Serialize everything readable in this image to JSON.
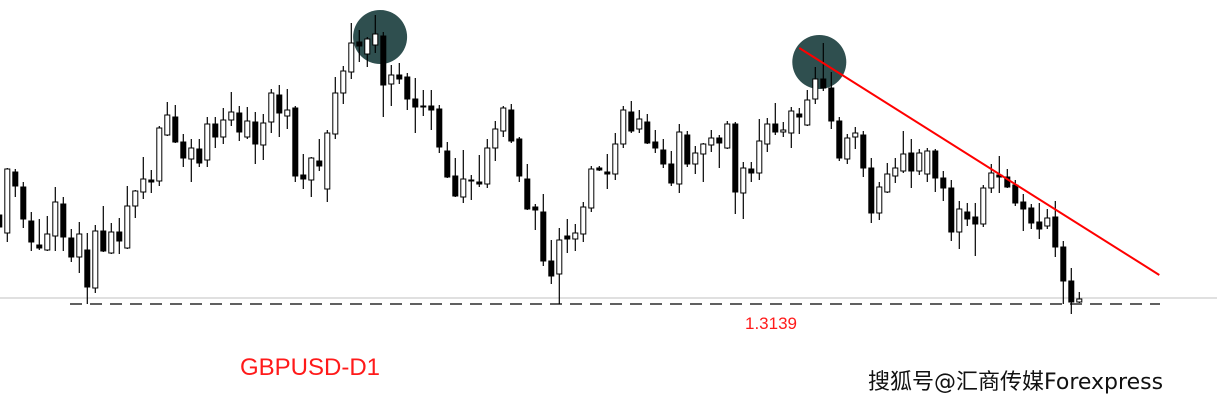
{
  "chart_data": {
    "type": "candlestick",
    "title": "GBPUSD-D1",
    "symbol": "GBPUSD",
    "timeframe": "D1",
    "xlabel": "",
    "ylabel": "",
    "grid": false,
    "ylim": [
      1.3119,
      1.3717
    ],
    "support_level": {
      "value": 1.3139,
      "label": "1.3139",
      "style": "dashed",
      "color": "#000000"
    },
    "current_price_line": {
      "value": 1.3151,
      "color": "#c0c0c0"
    },
    "trendline": {
      "from": {
        "index": 100,
        "price": 1.3651
      },
      "to": {
        "index": 145,
        "price": 1.3197
      },
      "color": "#ff0000"
    },
    "highlight_circles": [
      {
        "index": 47.6,
        "price": 1.3673,
        "color": "#2f4f4f"
      },
      {
        "index": 102.5,
        "price": 1.3623,
        "color": "#2f4f4f"
      }
    ],
    "bull_color": "#ffffff",
    "bear_color": "#000000",
    "candles_ohlc": [
      [
        1.3317,
        1.3321,
        1.3291,
        1.3293
      ],
      [
        1.3281,
        1.3411,
        1.3263,
        1.3409
      ],
      [
        1.3403,
        1.3409,
        1.3353,
        1.3375
      ],
      [
        1.3373,
        1.3383,
        1.3291,
        1.3309
      ],
      [
        1.3305,
        1.3323,
        1.3245,
        1.3263
      ],
      [
        1.3257,
        1.3309,
        1.3247,
        1.3251
      ],
      [
        1.3247,
        1.3315,
        1.3245,
        1.3279
      ],
      [
        1.3275,
        1.3373,
        1.3245,
        1.3343
      ],
      [
        1.3339,
        1.3353,
        1.3245,
        1.3273
      ],
      [
        1.3271,
        1.3289,
        1.3223,
        1.3233
      ],
      [
        1.3233,
        1.3303,
        1.3201,
        1.3279
      ],
      [
        1.3247,
        1.3281,
        1.3139,
        1.3173
      ],
      [
        1.3171,
        1.3297,
        1.3161,
        1.3285
      ],
      [
        1.3285,
        1.3335,
        1.3243,
        1.3245
      ],
      [
        1.3241,
        1.3301,
        1.3239,
        1.3283
      ],
      [
        1.3283,
        1.3311,
        1.3239,
        1.3265
      ],
      [
        1.3251,
        1.3375,
        1.3249,
        1.3335
      ],
      [
        1.3335,
        1.3367,
        1.3311,
        1.3365
      ],
      [
        1.3363,
        1.3433,
        1.3349,
        1.3389
      ],
      [
        1.3387,
        1.3407,
        1.3361,
        1.3383
      ],
      [
        1.3385,
        1.3495,
        1.3375,
        1.3491
      ],
      [
        1.3477,
        1.3543,
        1.3475,
        1.3517
      ],
      [
        1.3513,
        1.3537,
        1.3461,
        1.3463
      ],
      [
        1.3463,
        1.3479,
        1.3413,
        1.3431
      ],
      [
        1.3429,
        1.3469,
        1.3383,
        1.3451
      ],
      [
        1.3449,
        1.3469,
        1.3413,
        1.3421
      ],
      [
        1.3427,
        1.3513,
        1.3413,
        1.3499
      ],
      [
        1.3499,
        1.3513,
        1.3451,
        1.3473
      ],
      [
        1.3473,
        1.3531,
        1.3459,
        1.3507
      ],
      [
        1.3507,
        1.3563,
        1.3495,
        1.3523
      ],
      [
        1.3521,
        1.3535,
        1.3465,
        1.3483
      ],
      [
        1.3473,
        1.3533,
        1.3469,
        1.3505
      ],
      [
        1.3503,
        1.3523,
        1.3419,
        1.3459
      ],
      [
        1.3457,
        1.3519,
        1.3427,
        1.3501
      ],
      [
        1.3503,
        1.3569,
        1.3481,
        1.3561
      ],
      [
        1.3557,
        1.3577,
        1.3473,
        1.3521
      ],
      [
        1.3515,
        1.3569,
        1.3489,
        1.3527
      ],
      [
        1.3531,
        1.3535,
        1.3383,
        1.3395
      ],
      [
        1.3397,
        1.3439,
        1.3369,
        1.3389
      ],
      [
        1.3387,
        1.3433,
        1.3353,
        1.3431
      ],
      [
        1.3425,
        1.3469,
        1.3405,
        1.3415
      ],
      [
        1.3369,
        1.3487,
        1.3343,
        1.3481
      ],
      [
        1.3479,
        1.3593,
        1.3469,
        1.3561
      ],
      [
        1.3561,
        1.3615,
        1.3539,
        1.3605
      ],
      [
        1.3603,
        1.3701,
        1.3589,
        1.3661
      ],
      [
        1.3663,
        1.3687,
        1.3623,
        1.3655
      ],
      [
        1.3639,
        1.3673,
        1.3613,
        1.3669
      ],
      [
        1.3657,
        1.3717,
        1.3641,
        1.3679
      ],
      [
        1.3675,
        1.3683,
        1.3513,
        1.3577
      ],
      [
        1.3579,
        1.3617,
        1.3535,
        1.3597
      ],
      [
        1.3597,
        1.3621,
        1.3579,
        1.3589
      ],
      [
        1.3593,
        1.3601,
        1.3527,
        1.3549
      ],
      [
        1.3549,
        1.3591,
        1.3481,
        1.3533
      ],
      [
        1.3535,
        1.3567,
        1.3515,
        1.3533
      ],
      [
        1.3535,
        1.3567,
        1.3487,
        1.3527
      ],
      [
        1.3529,
        1.3537,
        1.3441,
        1.3453
      ],
      [
        1.3445,
        1.3463,
        1.3391,
        1.3393
      ],
      [
        1.3395,
        1.3431,
        1.3353,
        1.3355
      ],
      [
        1.3353,
        1.3447,
        1.3341,
        1.3389
      ],
      [
        1.3387,
        1.3397,
        1.3347,
        1.3385
      ],
      [
        1.3383,
        1.3437,
        1.3373,
        1.3379
      ],
      [
        1.3379,
        1.3469,
        1.3371,
        1.3451
      ],
      [
        1.3451,
        1.3505,
        1.3425,
        1.3489
      ],
      [
        1.3485,
        1.3535,
        1.3473,
        1.3531
      ],
      [
        1.3527,
        1.3539,
        1.3461,
        1.3465
      ],
      [
        1.3469,
        1.3473,
        1.3383,
        1.3395
      ],
      [
        1.3389,
        1.3419,
        1.3327,
        1.3329
      ],
      [
        1.3333,
        1.3339,
        1.3287,
        1.3327
      ],
      [
        1.3323,
        1.3359,
        1.3215,
        1.3225
      ],
      [
        1.3225,
        1.3267,
        1.3179,
        1.3195
      ],
      [
        1.3199,
        1.3291,
        1.3139,
        1.3267
      ],
      [
        1.3275,
        1.3309,
        1.3241,
        1.3269
      ],
      [
        1.3269,
        1.3299,
        1.3245,
        1.3281
      ],
      [
        1.3279,
        1.3343,
        1.3263,
        1.3333
      ],
      [
        1.3331,
        1.3415,
        1.3323,
        1.3409
      ],
      [
        1.3411,
        1.3415,
        1.3405,
        1.3407
      ],
      [
        1.3403,
        1.3439,
        1.3369,
        1.3399
      ],
      [
        1.3399,
        1.3481,
        1.3387,
        1.3459
      ],
      [
        1.3459,
        1.3535,
        1.3451,
        1.3527
      ],
      [
        1.3523,
        1.3545,
        1.3481,
        1.3485
      ],
      [
        1.3489,
        1.3527,
        1.3481,
        1.3509
      ],
      [
        1.3503,
        1.3519,
        1.3459,
        1.3461
      ],
      [
        1.3463,
        1.3487,
        1.3441,
        1.3451
      ],
      [
        1.3447,
        1.3469,
        1.3411,
        1.3419
      ],
      [
        1.3419,
        1.3445,
        1.3375,
        1.3381
      ],
      [
        1.3379,
        1.3499,
        1.3361,
        1.3483
      ],
      [
        1.3477,
        1.3485,
        1.3413,
        1.3419
      ],
      [
        1.3419,
        1.3455,
        1.3399,
        1.3441
      ],
      [
        1.3439,
        1.3461,
        1.3383,
        1.3459
      ],
      [
        1.3457,
        1.3487,
        1.3443,
        1.3471
      ],
      [
        1.3471,
        1.3477,
        1.3411,
        1.3461
      ],
      [
        1.3451,
        1.3505,
        1.3449,
        1.3499
      ],
      [
        1.3499,
        1.3503,
        1.3319,
        1.3363
      ],
      [
        1.3361,
        1.3423,
        1.3309,
        1.3411
      ],
      [
        1.3409,
        1.3423,
        1.3383,
        1.3401
      ],
      [
        1.3401,
        1.3509,
        1.3387,
        1.3465
      ],
      [
        1.3459,
        1.3511,
        1.3443,
        1.3499
      ],
      [
        1.3499,
        1.3541,
        1.3477,
        1.3483
      ],
      [
        1.3483,
        1.3503,
        1.3473,
        1.3487
      ],
      [
        1.3481,
        1.3533,
        1.3451,
        1.3525
      ],
      [
        1.3519,
        1.3531,
        1.3479,
        1.3513
      ],
      [
        1.3497,
        1.3567,
        1.3495,
        1.3547
      ],
      [
        1.3549,
        1.3613,
        1.3539,
        1.3589
      ],
      [
        1.3589,
        1.3661,
        1.3565,
        1.3571
      ],
      [
        1.3571,
        1.3603,
        1.3489,
        1.3505
      ],
      [
        1.3505,
        1.3513,
        1.3425,
        1.3431
      ],
      [
        1.3429,
        1.3479,
        1.3419,
        1.3471
      ],
      [
        1.3473,
        1.3493,
        1.3449,
        1.3481
      ],
      [
        1.3477,
        1.3485,
        1.3393,
        1.3411
      ],
      [
        1.3411,
        1.3431,
        1.3301,
        1.3321
      ],
      [
        1.3321,
        1.3383,
        1.3307,
        1.3373
      ],
      [
        1.3363,
        1.3421,
        1.3361,
        1.3399
      ],
      [
        1.3395,
        1.3431,
        1.3381,
        1.3411
      ],
      [
        1.3405,
        1.3485,
        1.3401,
        1.3439
      ],
      [
        1.3441,
        1.3469,
        1.3371,
        1.3405
      ],
      [
        1.3405,
        1.3449,
        1.3397,
        1.3441
      ],
      [
        1.3399,
        1.3451,
        1.3383,
        1.3445
      ],
      [
        1.3445,
        1.3449,
        1.3363,
        1.3391
      ],
      [
        1.3391,
        1.3405,
        1.3345,
        1.3371
      ],
      [
        1.3371,
        1.3387,
        1.3265,
        1.3283
      ],
      [
        1.3283,
        1.3345,
        1.3249,
        1.3329
      ],
      [
        1.3323,
        1.3341,
        1.3295,
        1.3309
      ],
      [
        1.3313,
        1.3341,
        1.3235,
        1.3299
      ],
      [
        1.3299,
        1.3377,
        1.3293,
        1.3371
      ],
      [
        1.3371,
        1.3419,
        1.3361,
        1.3401
      ],
      [
        1.3397,
        1.3435,
        1.3361,
        1.3393
      ],
      [
        1.3393,
        1.3409,
        1.3371,
        1.3373
      ],
      [
        1.3377,
        1.3387,
        1.3335,
        1.3341
      ],
      [
        1.3343,
        1.3359,
        1.3285,
        1.3329
      ],
      [
        1.3331,
        1.3339,
        1.3289,
        1.3301
      ],
      [
        1.3303,
        1.3341,
        1.3269,
        1.3289
      ],
      [
        1.3295,
        1.3329,
        1.3289,
        1.3311
      ],
      [
        1.3313,
        1.3345,
        1.3233,
        1.3253
      ],
      [
        1.3253,
        1.3265,
        1.3139,
        1.3185
      ],
      [
        1.3185,
        1.3211,
        1.3119,
        1.3143
      ],
      [
        1.3143,
        1.3163,
        1.3141,
        1.3149
      ]
    ]
  },
  "watermark": "搜狐号@汇商传媒Forexpress"
}
